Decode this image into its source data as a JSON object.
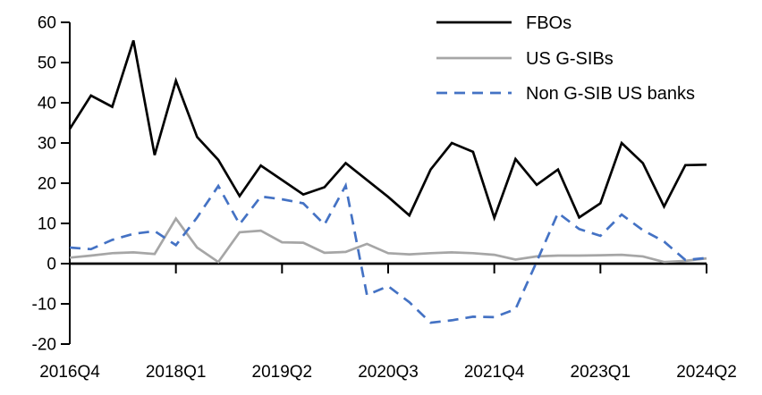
{
  "chart_data": {
    "type": "line",
    "title": "",
    "xlabel": "",
    "ylabel": "",
    "grid": false,
    "legend_position": "top-right",
    "x": [
      "2016Q4",
      "2017Q1",
      "2017Q2",
      "2017Q3",
      "2017Q4",
      "2018Q1",
      "2018Q2",
      "2018Q3",
      "2018Q4",
      "2019Q1",
      "2019Q2",
      "2019Q3",
      "2019Q4",
      "2020Q1",
      "2020Q2",
      "2020Q3",
      "2020Q4",
      "2021Q1",
      "2021Q2",
      "2021Q3",
      "2021Q4",
      "2022Q1",
      "2022Q2",
      "2022Q3",
      "2022Q4",
      "2023Q1",
      "2023Q2",
      "2023Q3",
      "2023Q4",
      "2024Q1",
      "2024Q2"
    ],
    "x_tick_indices": [
      0,
      5,
      10,
      15,
      20,
      25,
      30
    ],
    "x_tick_labels": [
      "2016Q4",
      "2018Q1",
      "2019Q2",
      "2020Q3",
      "2021Q4",
      "2023Q1",
      "2024Q2"
    ],
    "ylim": [
      -20,
      60
    ],
    "y_tick_step": 10,
    "y_tick_labels": [
      "60",
      "50",
      "40",
      "30",
      "20",
      "10",
      "0",
      "-10",
      "-20"
    ],
    "series": [
      {
        "name": "FBOs",
        "color": "#000000",
        "style": "solid",
        "values": [
          33.5,
          41.8,
          39.0,
          55.5,
          27.0,
          45.5,
          31.5,
          25.8,
          16.8,
          24.4,
          20.8,
          17.2,
          19.0,
          25.0,
          20.8,
          16.6,
          12.0,
          23.4,
          30.0,
          27.8,
          11.4,
          26.0,
          19.6,
          23.4,
          11.5,
          15.0,
          30.0,
          25.0,
          14.2,
          24.5,
          24.6
        ]
      },
      {
        "name": "US G-SIBs",
        "color": "#a6a6a6",
        "style": "solid",
        "values": [
          1.5,
          2.0,
          2.6,
          2.8,
          2.4,
          11.2,
          4.0,
          0.4,
          7.8,
          8.2,
          5.3,
          5.2,
          2.7,
          2.9,
          4.9,
          2.6,
          2.3,
          2.6,
          2.8,
          2.6,
          2.2,
          1.0,
          1.8,
          2.0,
          2.0,
          2.1,
          2.2,
          1.8,
          0.4,
          0.7,
          1.3
        ]
      },
      {
        "name": "Non G-SIB US banks",
        "color": "#4472c4",
        "style": "dashed",
        "values": [
          4.0,
          3.6,
          5.9,
          7.4,
          8.1,
          4.6,
          11.5,
          19.3,
          9.8,
          16.7,
          16.0,
          15.0,
          9.7,
          19.4,
          -7.8,
          -5.6,
          -9.6,
          -14.7,
          -14.1,
          -13.2,
          -13.3,
          -11.3,
          0.5,
          12.6,
          8.6,
          6.9,
          12.2,
          8.3,
          5.5,
          0.9,
          1.4
        ]
      }
    ]
  }
}
